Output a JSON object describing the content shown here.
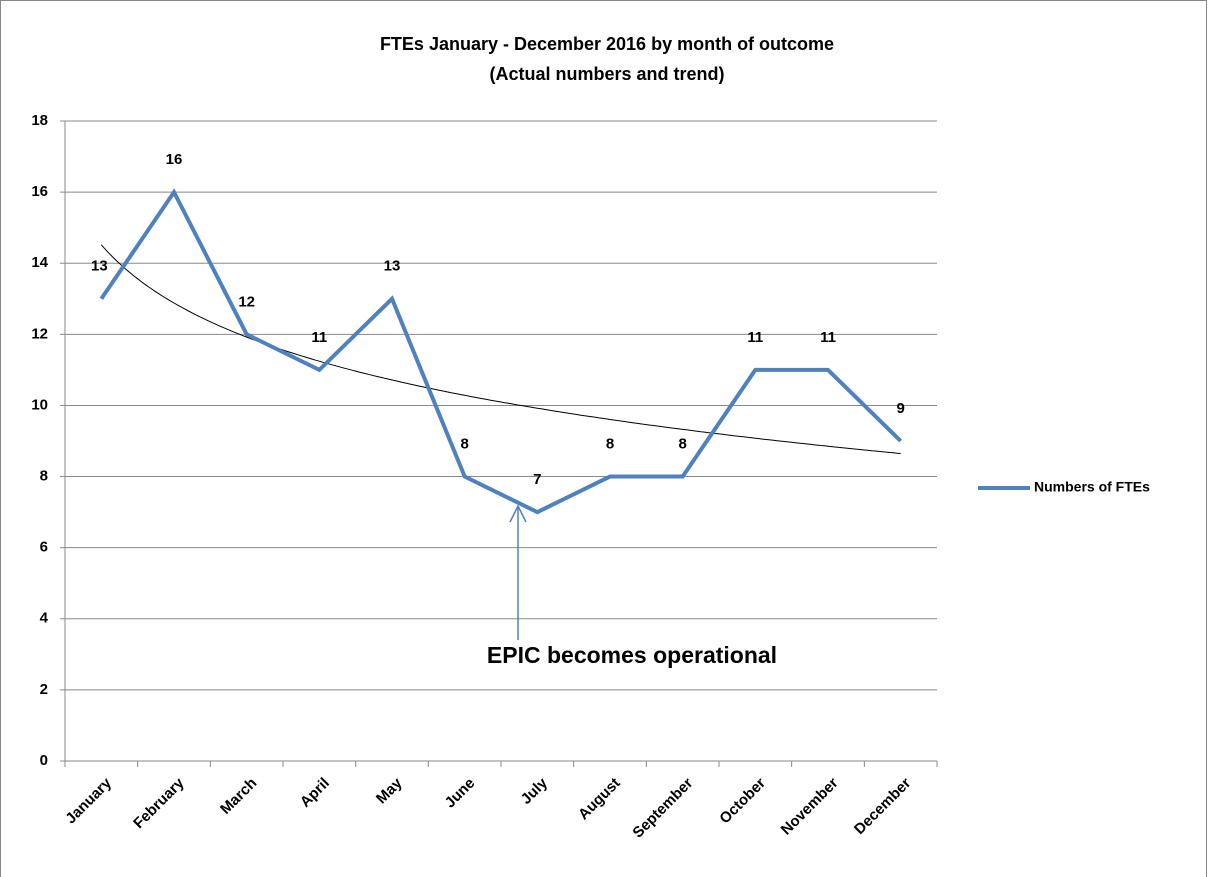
{
  "chart_data": {
    "type": "line",
    "title": "FTEs January - December 2016 by month of outcome",
    "subtitle": "(Actual numbers and trend)",
    "categories": [
      "January",
      "February",
      "March",
      "April",
      "May",
      "June",
      "July",
      "August",
      "September",
      "October",
      "November",
      "December"
    ],
    "series": [
      {
        "name": "Numbers of FTEs",
        "color": "#4f81bd",
        "values": [
          13,
          16,
          12,
          11,
          13,
          8,
          7,
          8,
          8,
          11,
          11,
          9
        ]
      }
    ],
    "ylim": [
      0,
      18
    ],
    "yticks": [
      0,
      2,
      4,
      6,
      8,
      10,
      12,
      14,
      16,
      18
    ],
    "grid": true,
    "legend": "right",
    "trendline": "logarithmic",
    "trendline_color": "#000000",
    "annotation": "EPIC becomes operational"
  }
}
